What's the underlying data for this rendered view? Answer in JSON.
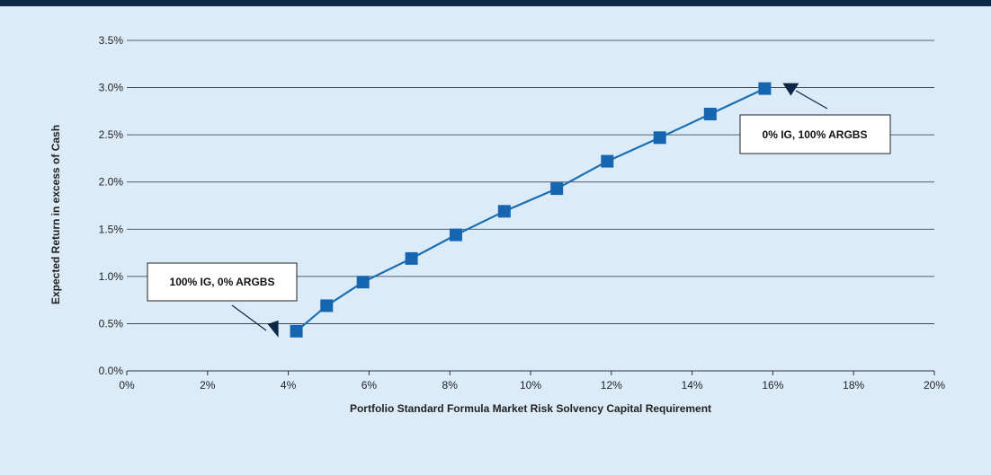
{
  "colors": {
    "background": "#dcebf8",
    "top_bar": "#0d2746",
    "series": "#1a6fb3",
    "marker": "#1565b0",
    "grid": "#2a3140",
    "annotation_arrow": "#0d2746"
  },
  "chart_data": {
    "type": "line",
    "title": "",
    "xlabel": "Portfolio Standard Formula Market Risk Solvency Capital Requirement",
    "ylabel": "Expected Return in excess of Cash",
    "xlim": [
      0,
      20
    ],
    "ylim": [
      0,
      3.5
    ],
    "x_ticks": [
      0,
      2,
      4,
      6,
      8,
      10,
      12,
      14,
      16,
      18,
      20
    ],
    "y_ticks": [
      0,
      0.5,
      1.0,
      1.5,
      2.0,
      2.5,
      3.0,
      3.5
    ],
    "x_tick_labels": [
      "0%",
      "2%",
      "4%",
      "6%",
      "8%",
      "10%",
      "12%",
      "14%",
      "16%",
      "18%",
      "20%"
    ],
    "y_tick_labels": [
      "0.0%",
      "0.5%",
      "1.0%",
      "1.5%",
      "2.0%",
      "2.5%",
      "3.0%",
      "3.5%"
    ],
    "grid": "horizontal",
    "marker": "square",
    "series": [
      {
        "x": [
          4.2,
          4.95,
          5.85,
          7.05,
          8.15,
          9.35,
          10.65,
          11.9,
          13.2,
          14.45,
          15.8
        ],
        "y": [
          0.42,
          0.69,
          0.94,
          1.19,
          1.44,
          1.69,
          1.93,
          2.22,
          2.47,
          2.72,
          2.99
        ]
      }
    ],
    "annotations": [
      {
        "text": "100% IG, 0% ARGBS",
        "target": "first-point"
      },
      {
        "text": "0% IG, 100% ARGBS",
        "target": "last-point"
      }
    ]
  }
}
